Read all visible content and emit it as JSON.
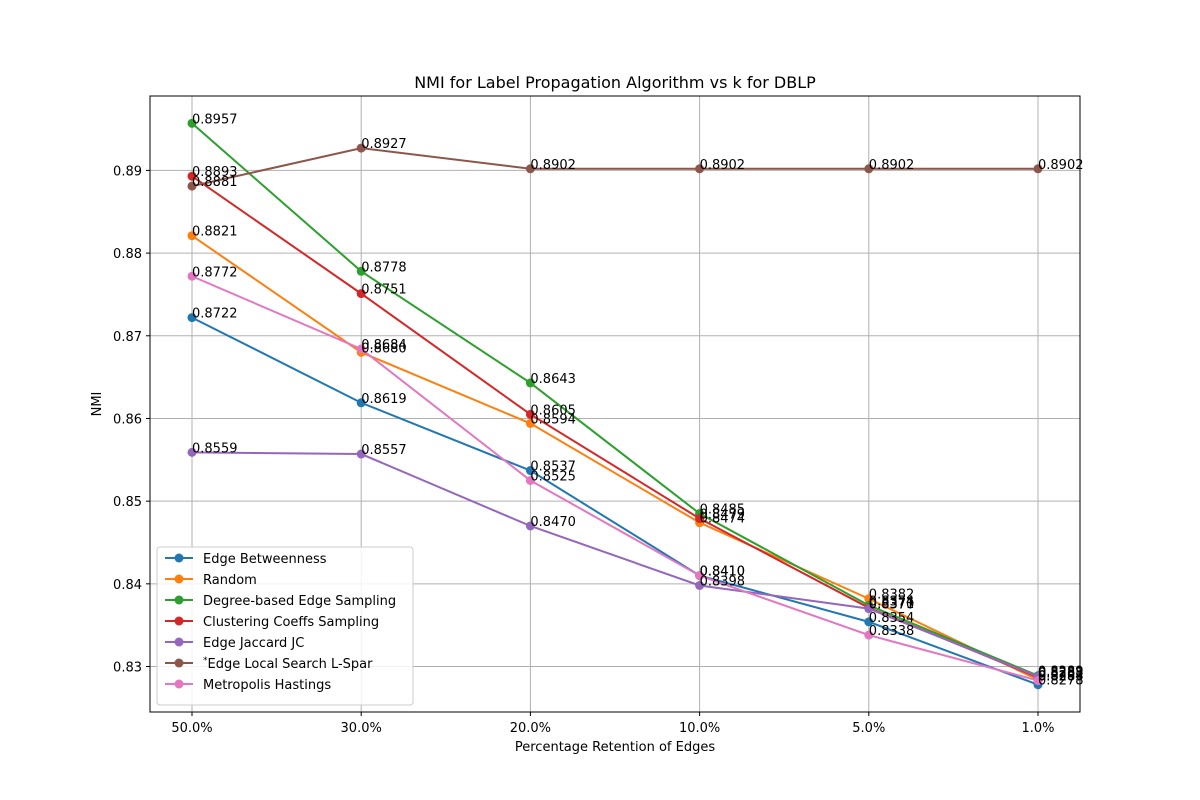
{
  "chart_data": {
    "type": "line",
    "title": "NMI for Label Propagation Algorithm vs k for DBLP",
    "xlabel": "Percentage Retention of Edges",
    "ylabel": "NMI",
    "categories": [
      "50.0%",
      "30.0%",
      "20.0%",
      "10.0%",
      "5.0%",
      "1.0%"
    ],
    "ylim": [
      0.8245,
      0.899
    ],
    "yticks": [
      0.83,
      0.84,
      0.85,
      0.86,
      0.87,
      0.88,
      0.89
    ],
    "ytick_labels": [
      "0.83",
      "0.84",
      "0.85",
      "0.86",
      "0.87",
      "0.88",
      "0.89"
    ],
    "grid": true,
    "legend_position": "lower-left",
    "series": [
      {
        "name": "Edge Betweenness",
        "color": "#1f77b4",
        "values": [
          0.8722,
          0.8619,
          0.8537,
          0.841,
          0.8354,
          0.8278
        ],
        "labels": [
          "0.8722",
          "0.8619",
          "0.8537",
          "0.8410",
          "0.8354",
          "0.8278"
        ]
      },
      {
        "name": "Random",
        "color": "#ff7f0e",
        "values": [
          0.8821,
          0.868,
          0.8594,
          0.8474,
          0.8382,
          0.8284
        ],
        "labels": [
          "0.8821",
          "0.8680",
          "0.8594",
          "0.8474",
          "0.8382",
          "0.8284"
        ]
      },
      {
        "name": "Degree-based Edge Sampling",
        "color": "#2ca02c",
        "values": [
          0.8957,
          0.8778,
          0.8643,
          0.8485,
          0.8374,
          0.8289
        ],
        "labels": [
          "0.8957",
          "0.8778",
          "0.8643",
          "0.8485",
          "0.8374",
          "0.8289"
        ]
      },
      {
        "name": "Clustering Coeffs Sampling",
        "color": "#d62728",
        "values": [
          0.8893,
          0.8751,
          0.8605,
          0.8479,
          0.8371,
          0.8287
        ],
        "labels": [
          "0.8893",
          "0.8751",
          "0.8605",
          "0.8479",
          "0.8371",
          "0.8287"
        ]
      },
      {
        "name": "Edge Jaccard JC",
        "color": "#9467bd",
        "values": [
          0.8559,
          0.8557,
          0.847,
          0.8398,
          0.837,
          0.8288
        ],
        "labels": [
          "0.8559",
          "0.8557",
          "0.8470",
          "0.8398",
          "0.8370",
          "0.8288"
        ]
      },
      {
        "name": "*Edge Local Search L-Spar",
        "color": "#8c564b",
        "values": [
          0.8881,
          0.8927,
          0.8902,
          0.8902,
          0.8902,
          0.8902
        ],
        "labels": [
          "0.8881",
          "0.8927",
          "0.8902",
          "0.8902",
          "0.8902",
          "0.8902"
        ]
      },
      {
        "name": "Metropolis Hastings",
        "color": "#e377c2",
        "values": [
          0.8772,
          0.8684,
          0.8525,
          0.841,
          0.8338,
          0.8283
        ],
        "labels": [
          "0.8772",
          "0.8684",
          "0.8525",
          "0.8410",
          "0.8338",
          "0.8283"
        ]
      }
    ]
  }
}
